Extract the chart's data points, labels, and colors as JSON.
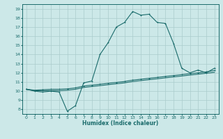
{
  "title": "",
  "xlabel": "Humidex (Indice chaleur)",
  "ylabel": "",
  "bg_color": "#cce8e8",
  "grid_color": "#aacccc",
  "line_color": "#1a6b6b",
  "xlim": [
    -0.5,
    23.5
  ],
  "ylim": [
    7.5,
    19.5
  ],
  "xticks": [
    0,
    1,
    2,
    3,
    4,
    5,
    6,
    7,
    8,
    9,
    10,
    11,
    12,
    13,
    14,
    15,
    16,
    17,
    18,
    19,
    20,
    21,
    22,
    23
  ],
  "yticks": [
    8,
    9,
    10,
    11,
    12,
    13,
    14,
    15,
    16,
    17,
    18,
    19
  ],
  "curve1_x": [
    0,
    1,
    2,
    3,
    4,
    5,
    6,
    7,
    8,
    9,
    10,
    11,
    12,
    13,
    14,
    15,
    16,
    17,
    18,
    19,
    20,
    21,
    22,
    23
  ],
  "curve1_y": [
    10.2,
    10.0,
    9.9,
    10.0,
    9.9,
    7.8,
    8.4,
    10.9,
    11.1,
    14.0,
    15.3,
    17.0,
    17.5,
    18.7,
    18.3,
    18.4,
    17.5,
    17.4,
    15.2,
    12.5,
    12.0,
    12.3,
    12.0,
    12.5
  ],
  "curve2_x": [
    0,
    1,
    2,
    3,
    4,
    5,
    6,
    7,
    8,
    9,
    10,
    11,
    12,
    13,
    14,
    15,
    16,
    17,
    18,
    19,
    20,
    21,
    22,
    23
  ],
  "curve2_y": [
    10.2,
    10.1,
    10.15,
    10.2,
    10.2,
    10.25,
    10.35,
    10.55,
    10.65,
    10.75,
    10.85,
    10.95,
    11.05,
    11.2,
    11.3,
    11.4,
    11.5,
    11.6,
    11.7,
    11.8,
    11.9,
    12.0,
    12.1,
    12.25
  ],
  "curve3_x": [
    0,
    1,
    2,
    3,
    4,
    5,
    6,
    7,
    8,
    9,
    10,
    11,
    12,
    13,
    14,
    15,
    16,
    17,
    18,
    19,
    20,
    21,
    22,
    23
  ],
  "curve3_y": [
    10.2,
    10.05,
    10.05,
    10.05,
    10.05,
    10.1,
    10.2,
    10.4,
    10.5,
    10.6,
    10.7,
    10.8,
    10.9,
    11.05,
    11.15,
    11.25,
    11.35,
    11.45,
    11.55,
    11.65,
    11.75,
    11.85,
    11.95,
    12.05
  ]
}
